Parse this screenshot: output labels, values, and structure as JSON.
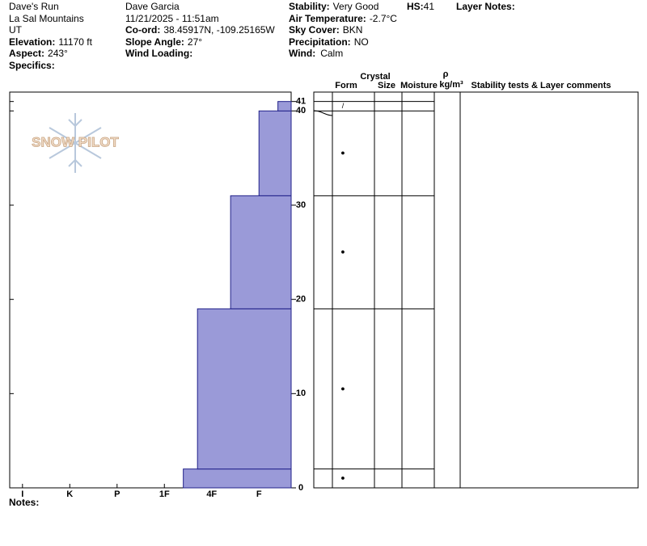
{
  "header": {
    "site": "Dave's Run",
    "range": "La Sal Mountains",
    "state": "UT",
    "elevation_label": "Elevation:",
    "elevation": "11170 ft",
    "aspect_label": "Aspect:",
    "aspect": "243°",
    "specifics_label": "Specifics:",
    "observer": "Dave Garcia",
    "datetime": "11/21/2025 - 11:51am",
    "coord_label": "Co-ord:",
    "coord": "38.45917N, -109.25165W",
    "slope_label": "Slope Angle:",
    "slope": "27°",
    "wind_loading_label": "Wind Loading:",
    "stability_label": "Stability:",
    "stability": "Very Good",
    "air_temp_label": "Air Temperature:",
    "air_temp": "-2.7°C",
    "sky_label": "Sky Cover:",
    "sky": "BKN",
    "precip_label": "Precipitation:",
    "precip": "NO",
    "wind_label": "Wind:",
    "wind": "Calm",
    "hs_label": "HS:",
    "hs": "41",
    "layer_notes_label": "Layer Notes:",
    "logo": "SNOW PILOT",
    "notes_label": "Notes:"
  },
  "table": {
    "crystal": "Crystal",
    "form": "Form",
    "size": "Size",
    "moisture": "Moisture",
    "rho": "ρ",
    "density_unit": "kg/m³",
    "comments": "Stability tests & Layer comments"
  },
  "chart_data": {
    "type": "profile",
    "layers": [
      {
        "bottom": 0,
        "top": 2,
        "hardness": 2.6,
        "form": "●"
      },
      {
        "bottom": 2,
        "top": 19,
        "hardness": 2.3,
        "form": "●"
      },
      {
        "bottom": 19,
        "top": 31,
        "hardness": 1.6,
        "form": "●"
      },
      {
        "bottom": 31,
        "top": 40,
        "hardness": 1.0,
        "form": "●"
      },
      {
        "bottom": 40,
        "top": 41,
        "hardness": 0.6,
        "form": "/"
      }
    ],
    "color": "#9a9ad8",
    "xlim": [
      6.27,
      0.32
    ],
    "xticks": [
      {
        "value": 6,
        "label": "I"
      },
      {
        "value": 5,
        "label": "K"
      },
      {
        "value": 4,
        "label": "P"
      },
      {
        "value": 3,
        "label": "1F"
      },
      {
        "value": 2,
        "label": "4F"
      },
      {
        "value": 1,
        "label": "F"
      }
    ],
    "ylim": [
      0,
      42
    ],
    "yticks": [
      0,
      10,
      20,
      30,
      40,
      41
    ]
  }
}
